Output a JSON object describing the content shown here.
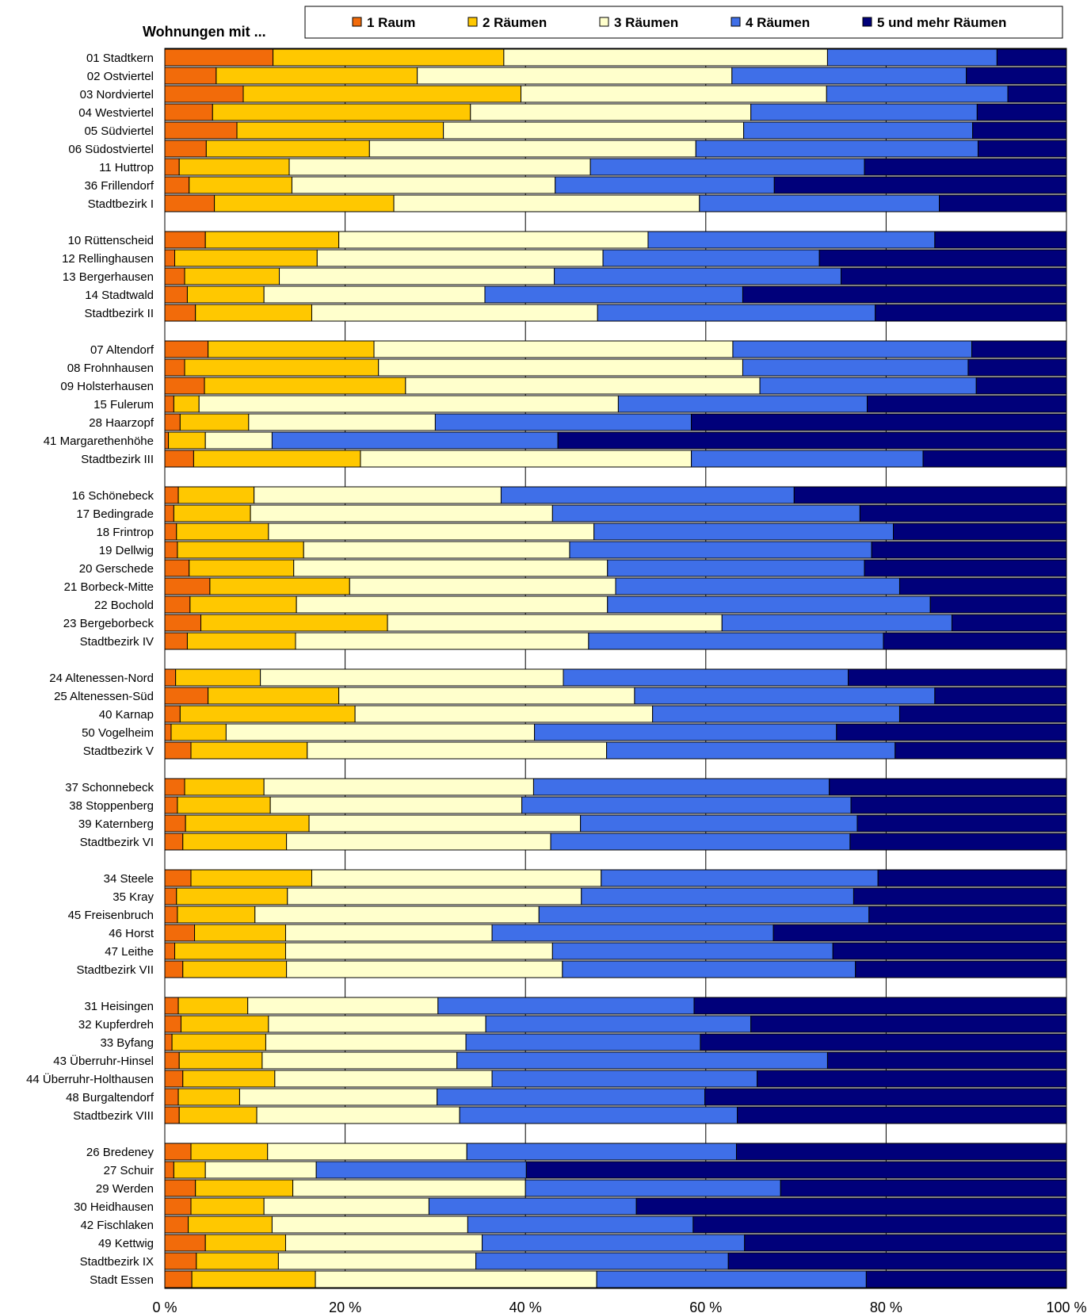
{
  "chart_data": {
    "type": "bar",
    "orientation": "horizontal",
    "stacked": "percent",
    "title": "Wohnungen mit ...",
    "xlim": [
      0,
      100
    ],
    "x_ticks": [
      "0 %",
      "20 %",
      "40 %",
      "60 %",
      "80 %",
      "100 %"
    ],
    "legend_position": "top",
    "series": [
      {
        "name": "1 Raum",
        "color": "#f26b0a"
      },
      {
        "name": "2 Räumen",
        "color": "#ffc800"
      },
      {
        "name": "3 Räumen",
        "color": "#ffffcc"
      },
      {
        "name": "4 Räumen",
        "color": "#3f6fe8"
      },
      {
        "name": "5 und mehr Räumen",
        "color": "#00007a"
      }
    ],
    "groups": [
      {
        "rows": [
          {
            "label": "01  Stadtkern",
            "values": [
              12.0,
              25.6,
              35.9,
              18.8,
              7.7
            ]
          },
          {
            "label": "02  Ostviertel",
            "values": [
              5.7,
              22.3,
              34.9,
              26.0,
              11.1
            ]
          },
          {
            "label": "03  Nordviertel",
            "values": [
              8.7,
              30.8,
              33.9,
              20.1,
              6.5
            ]
          },
          {
            "label": "04  Westviertel",
            "values": [
              5.3,
              28.6,
              31.1,
              25.1,
              9.9
            ]
          },
          {
            "label": "05  Südviertel",
            "values": [
              8.0,
              22.9,
              33.3,
              25.4,
              10.4
            ]
          },
          {
            "label": "06  Südostviertel",
            "values": [
              4.6,
              18.1,
              36.2,
              31.3,
              9.8
            ]
          },
          {
            "label": "11  Huttrop",
            "values": [
              1.6,
              12.2,
              33.4,
              30.4,
              22.4
            ]
          },
          {
            "label": "36  Frillendorf",
            "values": [
              2.7,
              11.4,
              29.2,
              24.3,
              32.4
            ]
          },
          {
            "label": "Stadtbezirk I",
            "values": [
              5.5,
              19.9,
              33.9,
              26.6,
              14.1
            ]
          }
        ]
      },
      {
        "rows": [
          {
            "label": "10  Rüttenscheid",
            "values": [
              4.5,
              14.8,
              34.3,
              31.8,
              14.6
            ]
          },
          {
            "label": "12  Rellinghausen",
            "values": [
              1.1,
              15.8,
              31.7,
              24.0,
              27.4
            ]
          },
          {
            "label": "13  Bergerhausen",
            "values": [
              2.2,
              10.5,
              30.5,
              31.8,
              25.0
            ]
          },
          {
            "label": "14  Stadtwald",
            "values": [
              2.5,
              8.5,
              24.5,
              28.6,
              35.9
            ]
          },
          {
            "label": "Stadtbezirk II",
            "values": [
              3.4,
              12.9,
              31.7,
              30.8,
              21.2
            ]
          }
        ]
      },
      {
        "rows": [
          {
            "label": "07  Altendorf",
            "values": [
              4.8,
              18.4,
              39.8,
              26.5,
              10.5
            ]
          },
          {
            "label": "08  Frohnhausen",
            "values": [
              2.2,
              21.5,
              40.4,
              25.0,
              10.9
            ]
          },
          {
            "label": "09  Holsterhausen",
            "values": [
              4.4,
              22.3,
              39.3,
              24.0,
              10.0
            ]
          },
          {
            "label": "15  Fulerum",
            "values": [
              1.0,
              2.8,
              46.5,
              27.6,
              22.1
            ]
          },
          {
            "label": "28  Haarzopf",
            "values": [
              1.7,
              7.6,
              20.7,
              28.4,
              41.6
            ]
          },
          {
            "label": "41  Margarethenhöhe",
            "values": [
              0.4,
              4.1,
              7.4,
              31.7,
              56.4
            ]
          },
          {
            "label": "Stadtbezirk III",
            "values": [
              3.2,
              18.5,
              36.7,
              25.7,
              15.9
            ]
          }
        ]
      },
      {
        "rows": [
          {
            "label": "16  Schönebeck",
            "values": [
              1.5,
              8.4,
              27.4,
              32.5,
              30.2
            ]
          },
          {
            "label": "17  Bedingrade",
            "values": [
              1.0,
              8.5,
              33.5,
              34.1,
              22.9
            ]
          },
          {
            "label": "18  Frintrop",
            "values": [
              1.3,
              10.2,
              36.1,
              33.2,
              19.2
            ]
          },
          {
            "label": "19  Dellwig",
            "values": [
              1.4,
              14.0,
              29.5,
              33.5,
              21.6
            ]
          },
          {
            "label": "20  Gerschede",
            "values": [
              2.7,
              11.6,
              34.8,
              28.5,
              22.4
            ]
          },
          {
            "label": "21  Borbeck-Mitte",
            "values": [
              5.0,
              15.5,
              29.5,
              31.5,
              18.5
            ]
          },
          {
            "label": "22  Bochold",
            "values": [
              2.8,
              11.8,
              34.5,
              35.8,
              15.1
            ]
          },
          {
            "label": "23  Bergeborbeck",
            "values": [
              4.0,
              20.7,
              37.1,
              25.5,
              12.7
            ]
          },
          {
            "label": "Stadtbezirk IV",
            "values": [
              2.5,
              12.0,
              32.5,
              32.7,
              20.3
            ]
          }
        ]
      },
      {
        "rows": [
          {
            "label": "24  Altenessen-Nord",
            "values": [
              1.2,
              9.4,
              33.6,
              31.6,
              24.2
            ]
          },
          {
            "label": "25  Altenessen-Süd",
            "values": [
              4.8,
              14.5,
              32.8,
              33.3,
              14.6
            ]
          },
          {
            "label": "40  Karnap",
            "values": [
              1.7,
              19.4,
              33.0,
              27.4,
              18.5
            ]
          },
          {
            "label": "50  Vogelheim",
            "values": [
              0.7,
              6.1,
              34.2,
              33.5,
              25.5
            ]
          },
          {
            "label": "Stadtbezirk V",
            "values": [
              2.9,
              12.9,
              33.2,
              32.0,
              19.0
            ]
          }
        ]
      },
      {
        "rows": [
          {
            "label": "37  Schonnebeck",
            "values": [
              2.2,
              8.8,
              29.9,
              32.8,
              26.3
            ]
          },
          {
            "label": "38  Stoppenberg",
            "values": [
              1.4,
              10.3,
              27.9,
              36.5,
              23.9
            ]
          },
          {
            "label": "39  Katernberg",
            "values": [
              2.3,
              13.7,
              30.1,
              30.7,
              23.2
            ]
          },
          {
            "label": "Stadtbezirk VI",
            "values": [
              2.0,
              11.5,
              29.3,
              33.2,
              24.0
            ]
          }
        ]
      },
      {
        "rows": [
          {
            "label": "34  Steele",
            "values": [
              2.9,
              13.4,
              32.1,
              30.7,
              20.9
            ]
          },
          {
            "label": "35  Kray",
            "values": [
              1.3,
              12.3,
              32.6,
              30.2,
              23.6
            ]
          },
          {
            "label": "45  Freisenbruch",
            "values": [
              1.4,
              8.6,
              31.5,
              36.6,
              21.9
            ]
          },
          {
            "label": "46  Horst",
            "values": [
              3.3,
              10.1,
              22.9,
              31.2,
              32.5
            ]
          },
          {
            "label": "47  Leithe",
            "values": [
              1.1,
              12.3,
              29.6,
              31.1,
              25.9
            ]
          },
          {
            "label": "Stadtbezirk VII",
            "values": [
              2.0,
              11.5,
              30.6,
              32.5,
              23.4
            ]
          }
        ]
      },
      {
        "rows": [
          {
            "label": "31  Heisingen",
            "values": [
              1.5,
              7.7,
              21.1,
              28.4,
              41.3
            ]
          },
          {
            "label": "32  Kupferdreh",
            "values": [
              1.8,
              9.7,
              24.1,
              29.4,
              35.0
            ]
          },
          {
            "label": "33  Byfang",
            "values": [
              0.8,
              10.4,
              22.2,
              26.0,
              40.6
            ]
          },
          {
            "label": "43  Überruhr-Hinsel",
            "values": [
              1.6,
              9.2,
              21.6,
              41.1,
              26.5
            ]
          },
          {
            "label": "44  Überruhr-Holthausen",
            "values": [
              2.0,
              10.2,
              24.1,
              29.4,
              34.3
            ]
          },
          {
            "label": "48  Burgaltendorf",
            "values": [
              1.5,
              6.8,
              21.9,
              29.7,
              40.1
            ]
          },
          {
            "label": "Stadtbezirk VIII",
            "values": [
              1.6,
              8.6,
              22.5,
              30.8,
              36.5
            ]
          }
        ]
      },
      {
        "rows": [
          {
            "label": "26  Bredeney",
            "values": [
              2.9,
              8.5,
              22.1,
              29.9,
              36.6
            ]
          },
          {
            "label": "27  Schuir",
            "values": [
              1.0,
              3.5,
              12.3,
              23.3,
              59.9
            ]
          },
          {
            "label": "29  Werden",
            "values": [
              3.4,
              10.8,
              25.8,
              28.3,
              31.7
            ]
          },
          {
            "label": "30  Heidhausen",
            "values": [
              2.9,
              8.1,
              18.3,
              23.0,
              47.7
            ]
          },
          {
            "label": "42  Fischlaken",
            "values": [
              2.6,
              9.3,
              21.7,
              25.0,
              41.4
            ]
          },
          {
            "label": "49  Kettwig",
            "values": [
              4.5,
              8.9,
              21.8,
              29.1,
              35.7
            ]
          },
          {
            "label": "Stadtbezirk IX",
            "values": [
              3.5,
              9.1,
              21.9,
              28.0,
              37.5
            ]
          },
          {
            "label": "Stadt Essen",
            "values": [
              3.0,
              13.7,
              31.2,
              29.9,
              22.2
            ]
          }
        ]
      }
    ]
  }
}
